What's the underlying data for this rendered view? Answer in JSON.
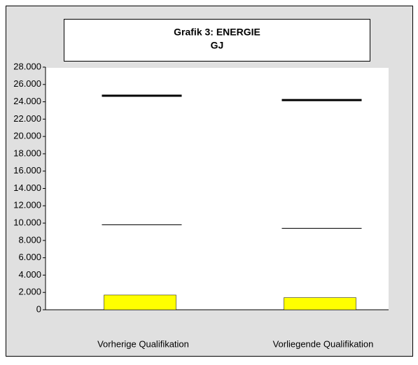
{
  "chart_data": {
    "type": "bar",
    "title": "Grafik 3: ENERGIE",
    "subtitle": "GJ",
    "categories": [
      "Vorherige Qualifikation",
      "Vorliegende Qualifikation"
    ],
    "series": [
      {
        "color": "#ffff00",
        "mark": "bar",
        "values": [
          1700,
          1400
        ]
      },
      {
        "color": "#000000",
        "mark": "line",
        "line_width": 3,
        "values": [
          24700,
          24200
        ]
      },
      {
        "color": "#000000",
        "mark": "line",
        "line_width": 1,
        "values": [
          9800,
          9400
        ]
      }
    ],
    "ylim": [
      0,
      28000
    ],
    "yticks": [
      0,
      {
        "value": 2000,
        "label": "2.000"
      },
      {
        "value": 4000,
        "label": "4.000"
      },
      {
        "value": 6000,
        "label": "6.000"
      },
      {
        "value": 8000,
        "label": "8.000"
      },
      {
        "value": 10000,
        "label": "10.000"
      },
      {
        "value": 12000,
        "label": "12.000"
      },
      {
        "value": 14000,
        "label": "14.000"
      },
      {
        "value": 16000,
        "label": "16.000"
      },
      {
        "value": 18000,
        "label": "18.000"
      },
      {
        "value": 20000,
        "label": "20.000"
      },
      {
        "value": 22000,
        "label": "22.000"
      },
      {
        "value": 24000,
        "label": "24.000"
      },
      {
        "value": 26000,
        "label": "26.000"
      },
      {
        "value": 28000,
        "label": "28.000"
      }
    ],
    "grid": false
  }
}
